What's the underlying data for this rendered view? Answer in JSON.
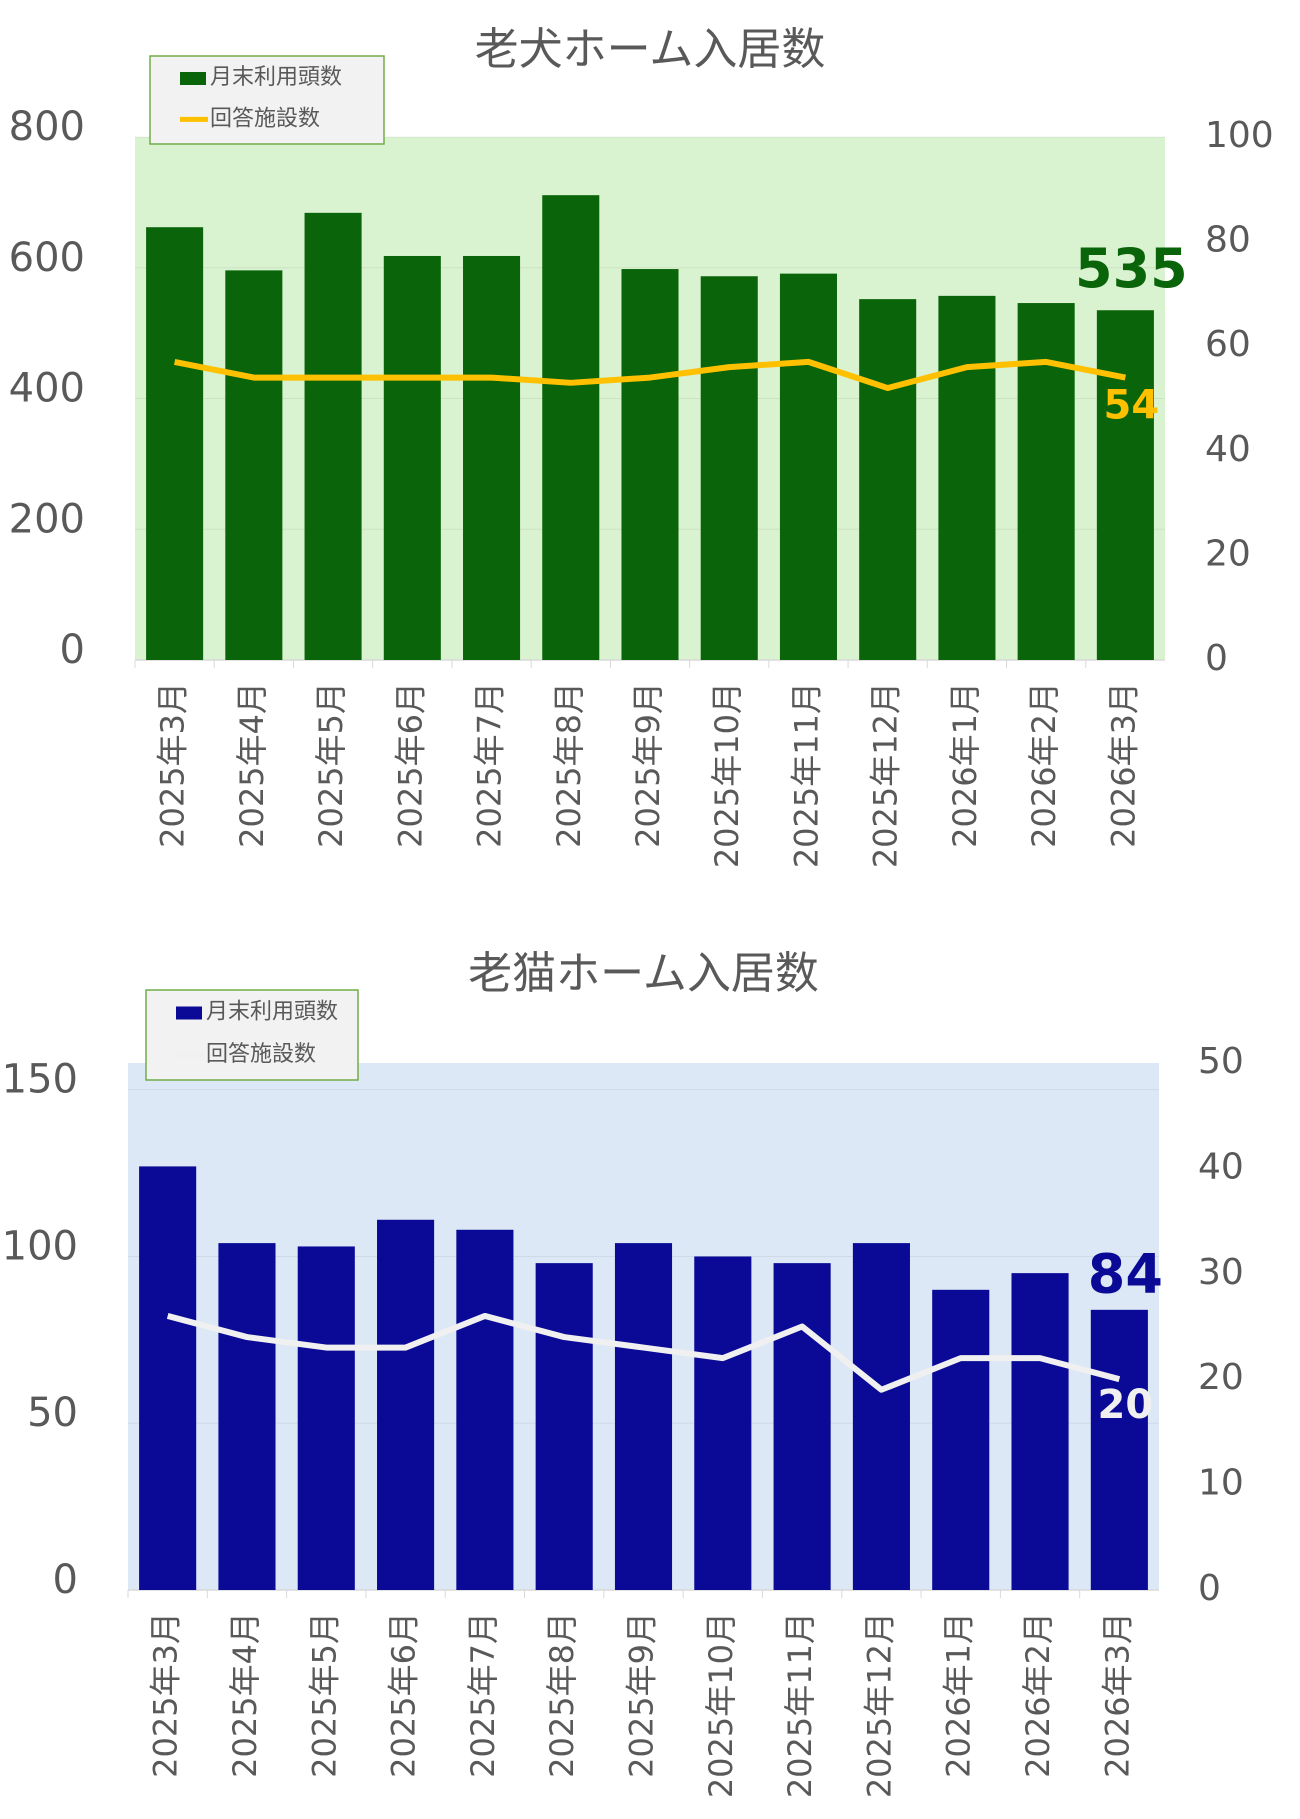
{
  "chart_data": [
    {
      "type": "bar",
      "title": "老犬ホーム入居数",
      "categories": [
        "2025年3月",
        "2025年4月",
        "2025年5月",
        "2025年6月",
        "2025年7月",
        "2025年8月",
        "2025年9月",
        "2025年10月",
        "2025年11月",
        "2025年12月",
        "2026年1月",
        "2026年2月",
        "2026年3月"
      ],
      "series": [
        {
          "name": "月末利用頭数",
          "color": "#0a640a",
          "values": [
            662,
            596,
            684,
            618,
            618,
            711,
            598,
            587,
            591,
            552,
            557,
            546,
            535
          ]
        },
        {
          "name": "回答施設数",
          "color": "#ffc000",
          "axis": "y2",
          "values": [
            57,
            54,
            54,
            54,
            54,
            53,
            54,
            56,
            57,
            52,
            56,
            57,
            54
          ]
        }
      ],
      "ylim": [
        0,
        800
      ],
      "yticks": [
        0,
        200,
        400,
        600,
        800
      ],
      "y2lim": [
        0,
        100
      ],
      "y2ticks": [
        0,
        20,
        40,
        60,
        80,
        100
      ],
      "background": "#d9f2d0",
      "grid": true
    },
    {
      "type": "bar",
      "title": "老猫ホーム入居数",
      "categories": [
        "2025年3月",
        "2025年4月",
        "2025年5月",
        "2025年6月",
        "2025年7月",
        "2025年8月",
        "2025年9月",
        "2025年10月",
        "2025年11月",
        "2025年12月",
        "2026年1月",
        "2026年2月",
        "2026年3月"
      ],
      "series": [
        {
          "name": "月末利用頭数",
          "color": "#0a0a96",
          "values": [
            127,
            104,
            103,
            111,
            108,
            98,
            104,
            100,
            98,
            104,
            90,
            95,
            84
          ]
        },
        {
          "name": "回答施設数",
          "color": "#f0f0f0",
          "axis": "y2",
          "values": [
            26,
            24,
            23,
            23,
            26,
            24,
            23,
            22,
            25,
            19,
            22,
            22,
            20
          ]
        }
      ],
      "ylim": [
        0,
        158
      ],
      "yticks": [
        0,
        50,
        100,
        150
      ],
      "y2lim": [
        0,
        50
      ],
      "y2ticks": [
        0,
        10,
        20,
        30,
        40,
        50
      ],
      "background": "#dce8f6",
      "grid": true
    }
  ]
}
